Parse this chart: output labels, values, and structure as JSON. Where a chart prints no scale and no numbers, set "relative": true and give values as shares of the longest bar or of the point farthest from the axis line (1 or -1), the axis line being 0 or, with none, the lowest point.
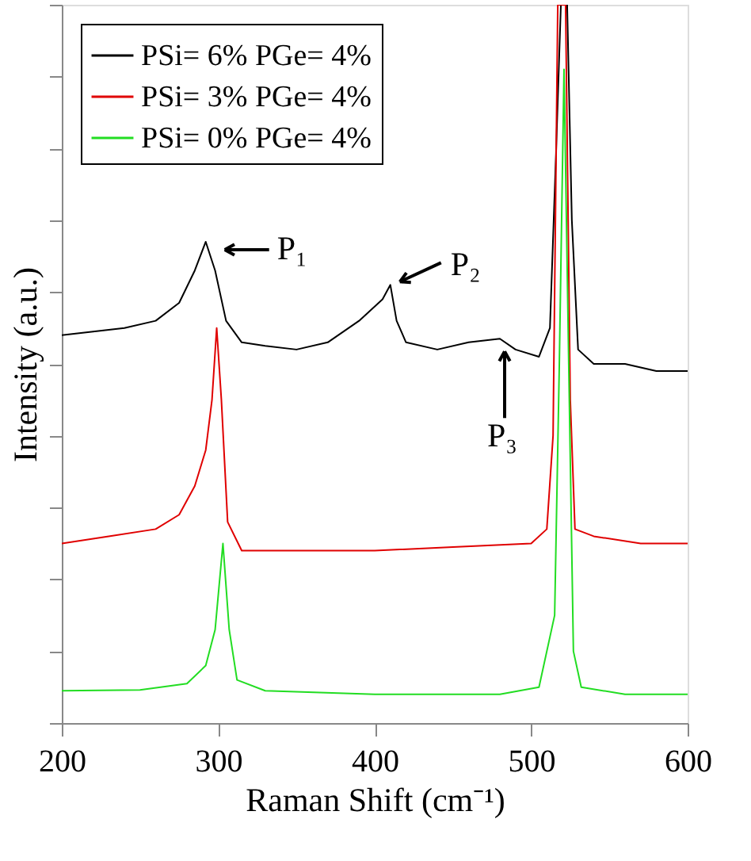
{
  "chart_data": {
    "type": "line",
    "xlabel": "Raman Shift (cm⁻¹)",
    "ylabel": "Intensity (a.u.)",
    "relative": true,
    "xlim": [
      200,
      600
    ],
    "xticks": [
      200,
      300,
      400,
      500,
      600
    ],
    "legend": "top left",
    "grid": false,
    "marker": "none",
    "line_style": "solid",
    "series": [
      {
        "name": "PSi= 6% PGe= 4%",
        "color": "#000000",
        "x": [
          200,
          220,
          240,
          260,
          275,
          285,
          292,
          298,
          305,
          315,
          330,
          350,
          370,
          390,
          405,
          410,
          414,
          420,
          440,
          460,
          480,
          490,
          505,
          512,
          516,
          519,
          523,
          526,
          530,
          540,
          560,
          580,
          600
        ],
        "values": [
          0.54,
          0.545,
          0.55,
          0.56,
          0.585,
          0.63,
          0.67,
          0.63,
          0.56,
          0.53,
          0.525,
          0.52,
          0.53,
          0.56,
          0.59,
          0.61,
          0.56,
          0.53,
          0.52,
          0.53,
          0.535,
          0.52,
          0.51,
          0.55,
          0.8,
          1,
          1,
          0.7,
          0.52,
          0.5,
          0.5,
          0.49,
          0.49
        ]
      },
      {
        "name": "PSi= 3% PGe= 4%",
        "color": "#e00000",
        "x": [
          200,
          230,
          260,
          275,
          285,
          292,
          296,
          299,
          302,
          306,
          315,
          350,
          400,
          450,
          500,
          510,
          514,
          517,
          522,
          525,
          528,
          540,
          570,
          600
        ],
        "values": [
          0.25,
          0.26,
          0.27,
          0.29,
          0.33,
          0.38,
          0.45,
          0.55,
          0.45,
          0.28,
          0.24,
          0.24,
          0.24,
          0.245,
          0.25,
          0.27,
          0.4,
          1,
          1,
          0.45,
          0.27,
          0.26,
          0.25,
          0.25
        ]
      },
      {
        "name": "PSi= 0% PGe= 4%",
        "color": "#22dd22",
        "x": [
          200,
          250,
          280,
          292,
          298,
          303,
          307,
          312,
          330,
          400,
          480,
          505,
          515,
          518,
          521,
          524,
          527,
          532,
          560,
          600
        ],
        "values": [
          0.045,
          0.046,
          0.055,
          0.08,
          0.13,
          0.25,
          0.13,
          0.06,
          0.045,
          0.04,
          0.04,
          0.05,
          0.15,
          0.5,
          0.91,
          0.5,
          0.1,
          0.05,
          0.04,
          0.04
        ]
      }
    ],
    "annotations": [
      {
        "text": "P₁",
        "x": 292,
        "y": 0.67
      },
      {
        "text": "P₂",
        "x": 410,
        "y": 0.61
      },
      {
        "text": "P₃",
        "x": 480,
        "y": 0.535
      }
    ]
  }
}
